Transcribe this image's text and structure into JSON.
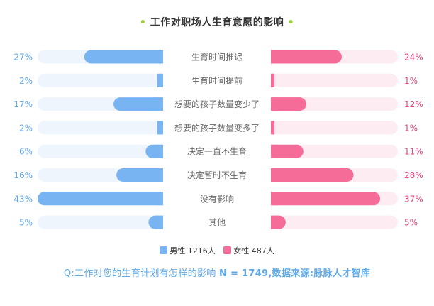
{
  "title": "工作对职场人生育意愿的影响",
  "colors": {
    "male": "#78b4f2",
    "male_track": "#eef5fd",
    "female": "#f56c98",
    "female_track": "#fdedf2",
    "male_text": "#62a8ec",
    "female_text": "#e8447a",
    "label_text": "#666666",
    "title_dot": "#9acd32"
  },
  "chart_data": {
    "type": "bar",
    "orientation": "horizontal-butterfly",
    "categories": [
      "生育时间推迟",
      "生育时间提前",
      "想要的孩子数量变少了",
      "想要的孩子数量变多了",
      "决定一直不生育",
      "决定暂时不生育",
      "没有影响",
      "其他"
    ],
    "series": [
      {
        "name": "男性 1216人",
        "values": [
          27,
          2,
          17,
          2,
          6,
          16,
          43,
          5
        ],
        "labels": [
          "27%",
          "2%",
          "17%",
          "2%",
          "6%",
          "16%",
          "43%",
          "5%"
        ]
      },
      {
        "name": "女性 487人",
        "values": [
          24,
          1,
          12,
          1,
          11,
          28,
          37,
          5
        ],
        "labels": [
          "24%",
          "1%",
          "12%",
          "1%",
          "11%",
          "28%",
          "37%",
          "5%"
        ]
      }
    ],
    "xlim": [
      0,
      43
    ],
    "legend_position": "bottom-center",
    "grid": false
  },
  "legend": {
    "male": "男性 1216人",
    "female": "女性 487人"
  },
  "footnote": {
    "question": "Q:工作对您的生育计划有怎样的影响",
    "sample": "N = 1749,数据来源:脉脉人才智库"
  }
}
